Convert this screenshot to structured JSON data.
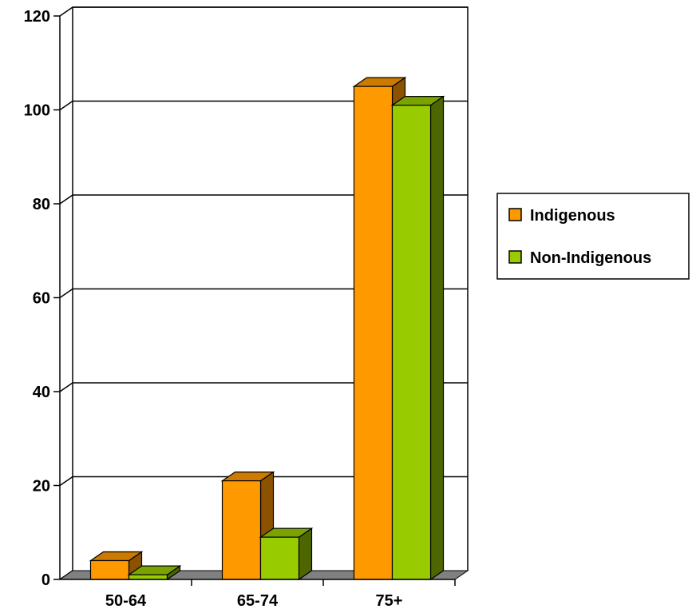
{
  "chart_data": {
    "type": "bar",
    "title": "",
    "xlabel": "",
    "ylabel": "",
    "categories": [
      "50-64",
      "65-74",
      "75+"
    ],
    "series": [
      {
        "name": "Indigenous",
        "values": [
          4,
          21,
          105
        ],
        "color": "#FF9900",
        "top_color": "#CC7A00",
        "side_color": "#8C5200"
      },
      {
        "name": "Non-Indigenous",
        "values": [
          1,
          9,
          101
        ],
        "color": "#99CC00",
        "top_color": "#7AA300",
        "side_color": "#4D6600"
      }
    ],
    "ylim": [
      0,
      120
    ],
    "yticks": [
      0,
      20,
      40,
      60,
      80,
      100,
      120
    ],
    "grid": true,
    "legend_position": "right",
    "three_d": true
  }
}
